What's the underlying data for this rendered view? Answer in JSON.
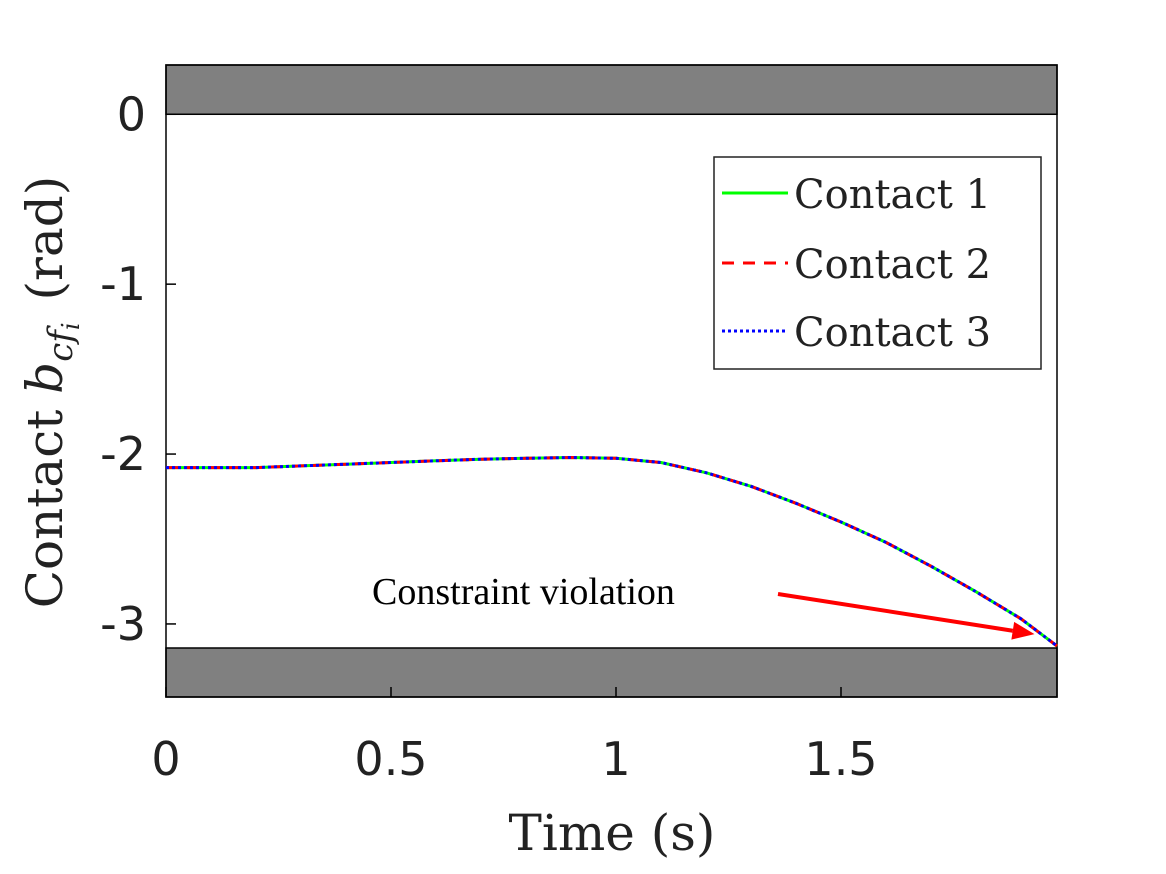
{
  "chart_data": {
    "type": "line",
    "xlabel": "Time (s)",
    "ylabel": {
      "prefix": "Contact ",
      "symbol": "b",
      "subscript": "cf",
      "subsubscript": "i",
      "unit": "(rad)"
    },
    "xlim": [
      0,
      1.98
    ],
    "ylim": [
      -3.43,
      0.29
    ],
    "x_ticks": [
      0,
      0.5,
      1,
      1.5
    ],
    "x_tick_labels": [
      "0",
      "0.5",
      "1",
      "1.5"
    ],
    "y_ticks": [
      0,
      -1,
      -2,
      -3
    ],
    "y_tick_labels": [
      "0",
      "-1",
      "-2",
      "-3"
    ],
    "grid": false,
    "legend_position": "top-right",
    "constraint_bands": [
      {
        "from": 0,
        "to": 0.29,
        "color": "#808080"
      },
      {
        "from": -3.43,
        "to": -3.1416,
        "color": "#808080"
      }
    ],
    "series": [
      {
        "name": "Contact 1",
        "color": "#00ff00",
        "dash": "solid"
      },
      {
        "name": "Contact 2",
        "color": "#ff0000",
        "dash": "dashed"
      },
      {
        "name": "Contact 3",
        "color": "#0000ff",
        "dash": "dotted"
      }
    ],
    "x": [
      0,
      0.1,
      0.2,
      0.3,
      0.4,
      0.5,
      0.6,
      0.7,
      0.8,
      0.9,
      1.0,
      1.1,
      1.2,
      1.3,
      1.4,
      1.5,
      1.6,
      1.7,
      1.8,
      1.9,
      1.98
    ],
    "y": [
      -2.08,
      -2.08,
      -2.08,
      -2.07,
      -2.06,
      -2.05,
      -2.04,
      -2.03,
      -2.025,
      -2.02,
      -2.025,
      -2.05,
      -2.11,
      -2.19,
      -2.29,
      -2.4,
      -2.52,
      -2.66,
      -2.81,
      -2.97,
      -3.13
    ],
    "annotation": {
      "text": "Constraint violation",
      "arrow_color": "#ff0000",
      "target": [
        1.93,
        -3.06
      ]
    }
  }
}
